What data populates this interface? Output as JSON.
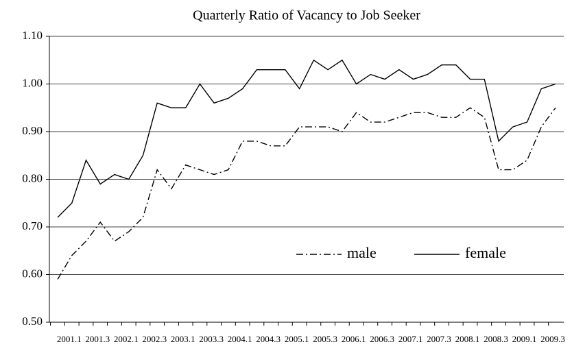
{
  "chart_data": {
    "type": "line",
    "title": "Quarterly Ratio of Vacancy to Job Seeker",
    "categories": [
      null,
      "2001.1",
      null,
      "2001.3",
      null,
      "2002.1",
      null,
      "2002.3",
      null,
      "2003.1",
      null,
      "2003.3",
      null,
      "2004.1",
      null,
      "2004.3",
      null,
      "2005.1",
      null,
      "2005.3",
      null,
      "2006.1",
      null,
      "2006.3",
      null,
      "2007.1",
      null,
      "2007.3",
      null,
      "2008.1",
      null,
      "2008.3",
      null,
      "2009.1",
      null,
      "2009.3"
    ],
    "series": [
      {
        "name": "male",
        "color": "#000000",
        "dash": "dashdot",
        "values": [
          0.59,
          0.64,
          0.67,
          0.71,
          0.67,
          0.69,
          0.72,
          0.82,
          0.78,
          0.83,
          0.82,
          0.81,
          0.82,
          0.88,
          0.88,
          0.87,
          0.87,
          0.91,
          0.91,
          0.91,
          0.9,
          0.94,
          0.92,
          0.92,
          0.93,
          0.94,
          0.94,
          0.93,
          0.93,
          0.95,
          0.93,
          0.82,
          0.82,
          0.84,
          0.91,
          0.95
        ]
      },
      {
        "name": "female",
        "color": "#000000",
        "dash": "solid",
        "values": [
          0.72,
          0.75,
          0.84,
          0.79,
          0.81,
          0.8,
          0.85,
          0.96,
          0.95,
          0.95,
          1.0,
          0.96,
          0.97,
          0.99,
          1.03,
          1.03,
          1.03,
          0.99,
          1.05,
          1.03,
          1.05,
          1.0,
          1.02,
          1.01,
          1.03,
          1.01,
          1.02,
          1.04,
          1.04,
          1.01,
          1.01,
          0.88,
          0.91,
          0.92,
          0.99,
          1.0
        ]
      }
    ],
    "ylim": [
      0.5,
      1.1
    ],
    "yticks": [
      {
        "value": 0.5,
        "label": "0.50"
      },
      {
        "value": 0.6,
        "label": "0.60"
      },
      {
        "value": 0.7,
        "label": "0.70"
      },
      {
        "value": 0.8,
        "label": "0.80"
      },
      {
        "value": 0.9,
        "label": "0.90"
      },
      {
        "value": 1.0,
        "label": "1.00"
      },
      {
        "value": 1.1,
        "label": "1.10"
      }
    ],
    "grid": true
  }
}
